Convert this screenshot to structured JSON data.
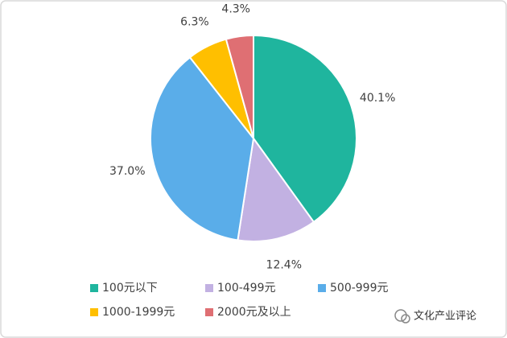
{
  "chart_data": {
    "type": "pie",
    "categories": [
      "100元以下",
      "100-499元",
      "500-999元",
      "1000-1999元",
      "2000元及以上"
    ],
    "values": [
      40.1,
      12.4,
      37.0,
      6.3,
      4.3
    ],
    "value_labels": [
      "40.1%",
      "12.4%",
      "37.0%",
      "6.3%",
      "4.3%"
    ],
    "colors": [
      "#1fb59e",
      "#c2b1e2",
      "#5aade9",
      "#ffbf00",
      "#df6f73"
    ],
    "legend": "bottom",
    "watermark": "文化产业评论"
  }
}
